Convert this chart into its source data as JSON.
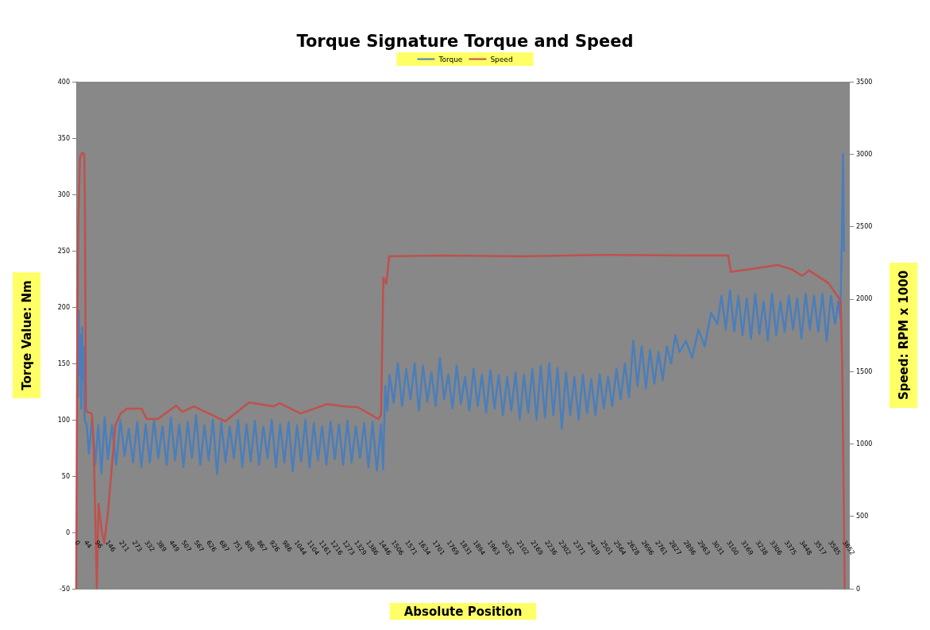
{
  "chart_data": {
    "type": "line",
    "title": "Torque Signature Torque and Speed",
    "xlabel": "Absolute Position",
    "ylabel": "Torqe Value: Nm",
    "y2label": "Speed: RPM x 1000",
    "legend": "top",
    "xlim": [
      0,
      3680
    ],
    "xticks": [
      0,
      44,
      96,
      146,
      211,
      273,
      332,
      389,
      449,
      507,
      567,
      626,
      687,
      751,
      808,
      867,
      926,
      986,
      1044,
      1104,
      1161,
      1216,
      1273,
      1329,
      1386,
      1446,
      1506,
      1571,
      1634,
      1701,
      1769,
      1831,
      1894,
      1963,
      2032,
      2102,
      2169,
      2236,
      2302,
      2371,
      2439,
      2501,
      2564,
      2628,
      2696,
      2761,
      2827,
      2896,
      2963,
      3031,
      3100,
      3169,
      3238,
      3306,
      3375,
      3448,
      3517,
      3585,
      3652
    ],
    "ylim": [
      -50,
      400
    ],
    "yticks": [
      -50,
      0,
      50,
      100,
      150,
      200,
      250,
      300,
      350,
      400
    ],
    "y2lim": [
      0,
      3500
    ],
    "y2ticks": [
      0,
      500,
      1000,
      1500,
      2000,
      2500,
      3000,
      3500
    ],
    "series": [
      {
        "name": "Torque",
        "color": "#4a7ebb",
        "x": [
          6,
          9,
          12,
          16,
          20,
          24,
          28,
          32,
          36,
          40,
          50,
          60,
          75,
          90,
          105,
          120,
          135,
          150,
          170,
          190,
          210,
          230,
          250,
          270,
          290,
          310,
          330,
          350,
          370,
          390,
          410,
          430,
          450,
          470,
          490,
          510,
          530,
          550,
          570,
          590,
          610,
          630,
          650,
          670,
          690,
          710,
          730,
          750,
          770,
          790,
          810,
          830,
          850,
          870,
          890,
          910,
          930,
          950,
          970,
          990,
          1010,
          1030,
          1050,
          1070,
          1090,
          1110,
          1130,
          1150,
          1170,
          1190,
          1210,
          1230,
          1250,
          1270,
          1290,
          1310,
          1330,
          1350,
          1370,
          1390,
          1410,
          1430,
          1450,
          1460,
          1470,
          1480,
          1490,
          1510,
          1530,
          1550,
          1570,
          1590,
          1610,
          1630,
          1650,
          1670,
          1690,
          1710,
          1730,
          1750,
          1770,
          1790,
          1810,
          1830,
          1850,
          1870,
          1890,
          1910,
          1930,
          1950,
          1970,
          1990,
          2010,
          2030,
          2050,
          2070,
          2090,
          2110,
          2130,
          2150,
          2170,
          2190,
          2210,
          2230,
          2250,
          2270,
          2290,
          2310,
          2330,
          2350,
          2370,
          2390,
          2410,
          2430,
          2450,
          2470,
          2490,
          2510,
          2530,
          2550,
          2570,
          2590,
          2610,
          2630,
          2650,
          2670,
          2690,
          2710,
          2730,
          2750,
          2770,
          2790,
          2810,
          2830,
          2850,
          2870,
          2900,
          2930,
          2960,
          2990,
          3020,
          3050,
          3070,
          3090,
          3110,
          3130,
          3150,
          3170,
          3190,
          3210,
          3230,
          3250,
          3270,
          3290,
          3310,
          3330,
          3350,
          3370,
          3390,
          3410,
          3430,
          3450,
          3470,
          3490,
          3510,
          3530,
          3550,
          3570,
          3590,
          3610,
          3625,
          3635,
          3642,
          3648,
          3652
        ],
        "values": [
          150,
          120,
          197,
          140,
          175,
          110,
          182,
          135,
          165,
          100,
          95,
          70,
          100,
          60,
          95,
          52,
          102,
          65,
          95,
          60,
          100,
          68,
          92,
          62,
          98,
          58,
          96,
          62,
          100,
          66,
          94,
          60,
          102,
          64,
          96,
          58,
          98,
          66,
          104,
          60,
          95,
          64,
          100,
          52,
          98,
          62,
          94,
          66,
          100,
          58,
          96,
          63,
          99,
          60,
          94,
          66,
          100,
          58,
          96,
          62,
          98,
          54,
          95,
          63,
          100,
          58,
          97,
          64,
          94,
          60,
          98,
          65,
          96,
          60,
          99,
          62,
          94,
          66,
          97,
          58,
          98,
          55,
          96,
          56,
          130,
          108,
          140,
          115,
          150,
          112,
          145,
          118,
          150,
          108,
          148,
          116,
          142,
          112,
          155,
          118,
          140,
          110,
          148,
          114,
          138,
          108,
          145,
          112,
          140,
          106,
          144,
          110,
          140,
          104,
          138,
          108,
          142,
          100,
          140,
          106,
          145,
          100,
          148,
          102,
          150,
          104,
          146,
          92,
          142,
          104,
          138,
          100,
          140,
          106,
          136,
          104,
          140,
          110,
          138,
          112,
          145,
          118,
          150,
          120,
          170,
          130,
          165,
          128,
          162,
          132,
          160,
          135,
          165,
          150,
          175,
          160,
          170,
          155,
          180,
          165,
          195,
          185,
          210,
          180,
          215,
          178,
          210,
          175,
          208,
          172,
          212,
          176,
          205,
          170,
          212,
          175,
          205,
          178,
          210,
          180,
          208,
          172,
          212,
          180,
          210,
          178,
          212,
          170,
          210,
          185,
          205,
          190,
          260,
          336,
          250
        ]
      },
      {
        "name": "Speed",
        "color": "#c0504d",
        "axis": "y2",
        "x": [
          0,
          5,
          10,
          18,
          28,
          38,
          41,
          46,
          52,
          74,
          83,
          92,
          98,
          106,
          121,
          133,
          151,
          167,
          186,
          212,
          241,
          311,
          335,
          388,
          475,
          505,
          560,
          708,
          823,
          940,
          968,
          1067,
          1194,
          1276,
          1340,
          1437,
          1450,
          1461,
          1475,
          1489,
          1735,
          2122,
          2509,
          2894,
          3102,
          3114,
          3338,
          3406,
          3454,
          3486,
          3578,
          3625,
          3637,
          3644,
          3656
        ],
        "values": [
          0,
          1800,
          2540,
          2975,
          3010,
          3000,
          2700,
          1237,
          1220,
          1210,
          1000,
          400,
          0,
          586,
          400,
          315,
          530,
          800,
          1130,
          1210,
          1243,
          1243,
          1172,
          1172,
          1264,
          1221,
          1259,
          1156,
          1286,
          1259,
          1281,
          1210,
          1275,
          1259,
          1253,
          1172,
          1200,
          2149,
          2105,
          2295,
          2300,
          2295,
          2305,
          2300,
          2300,
          2187,
          2235,
          2203,
          2160,
          2197,
          2111,
          2013,
          1986,
          1535,
          0
        ]
      }
    ]
  }
}
